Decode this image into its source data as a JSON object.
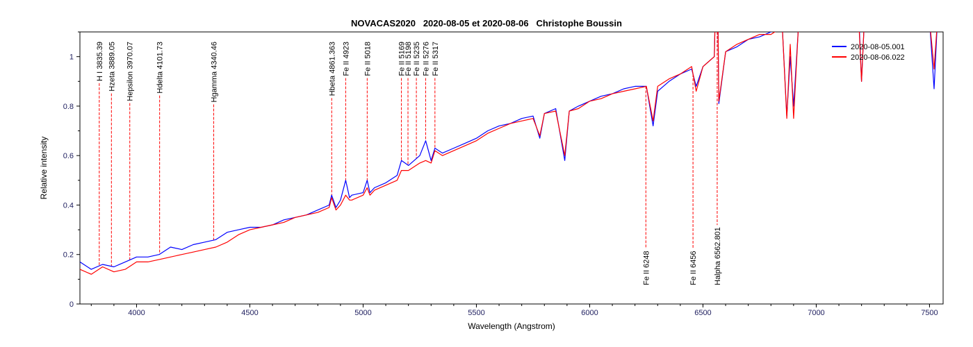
{
  "chart_data": {
    "type": "line",
    "title": "NOVACAS2020   2020-08-05 et 2020-08-06   Christophe Boussin",
    "xlabel": "Wavelength (Angstrom)",
    "ylabel": "Relative intensity",
    "xlim": [
      3750,
      7560
    ],
    "ylim": [
      0,
      1.1
    ],
    "xticks": [
      4000,
      4500,
      5000,
      5500,
      6000,
      6500,
      7000,
      7500
    ],
    "yticks": [
      0,
      0.2,
      0.4,
      0.6,
      0.8,
      1
    ],
    "ytick_labels": [
      "0",
      "0.2",
      "0.4",
      "0.6",
      "0.8",
      "1"
    ],
    "legend_position": "top-right",
    "series": [
      {
        "name": "2020-08-05.001",
        "color": "#0000ff",
        "points": [
          [
            3750,
            0.17
          ],
          [
            3800,
            0.14
          ],
          [
            3850,
            0.16
          ],
          [
            3900,
            0.15
          ],
          [
            3950,
            0.17
          ],
          [
            4000,
            0.19
          ],
          [
            4050,
            0.19
          ],
          [
            4100,
            0.2
          ],
          [
            4150,
            0.23
          ],
          [
            4200,
            0.22
          ],
          [
            4250,
            0.24
          ],
          [
            4300,
            0.25
          ],
          [
            4350,
            0.26
          ],
          [
            4400,
            0.29
          ],
          [
            4450,
            0.3
          ],
          [
            4500,
            0.31
          ],
          [
            4550,
            0.31
          ],
          [
            4600,
            0.32
          ],
          [
            4650,
            0.34
          ],
          [
            4700,
            0.35
          ],
          [
            4750,
            0.36
          ],
          [
            4800,
            0.38
          ],
          [
            4850,
            0.4
          ],
          [
            4861,
            0.44
          ],
          [
            4880,
            0.39
          ],
          [
            4900,
            0.42
          ],
          [
            4923,
            0.5
          ],
          [
            4940,
            0.43
          ],
          [
            4950,
            0.44
          ],
          [
            5000,
            0.45
          ],
          [
            5018,
            0.5
          ],
          [
            5030,
            0.45
          ],
          [
            5050,
            0.47
          ],
          [
            5100,
            0.49
          ],
          [
            5150,
            0.52
          ],
          [
            5169,
            0.58
          ],
          [
            5200,
            0.56
          ],
          [
            5250,
            0.6
          ],
          [
            5276,
            0.66
          ],
          [
            5300,
            0.58
          ],
          [
            5317,
            0.63
          ],
          [
            5350,
            0.61
          ],
          [
            5400,
            0.63
          ],
          [
            5450,
            0.65
          ],
          [
            5500,
            0.67
          ],
          [
            5550,
            0.7
          ],
          [
            5600,
            0.72
          ],
          [
            5650,
            0.73
          ],
          [
            5700,
            0.75
          ],
          [
            5750,
            0.76
          ],
          [
            5780,
            0.67
          ],
          [
            5800,
            0.77
          ],
          [
            5850,
            0.79
          ],
          [
            5890,
            0.58
          ],
          [
            5910,
            0.78
          ],
          [
            5950,
            0.8
          ],
          [
            6000,
            0.82
          ],
          [
            6050,
            0.84
          ],
          [
            6100,
            0.85
          ],
          [
            6150,
            0.87
          ],
          [
            6200,
            0.88
          ],
          [
            6250,
            0.88
          ],
          [
            6280,
            0.72
          ],
          [
            6300,
            0.86
          ],
          [
            6350,
            0.9
          ],
          [
            6400,
            0.93
          ],
          [
            6450,
            0.95
          ],
          [
            6470,
            0.88
          ],
          [
            6500,
            0.96
          ],
          [
            6550,
            1.0
          ],
          [
            6562,
            1.5
          ],
          [
            6570,
            0.81
          ],
          [
            6600,
            1.02
          ],
          [
            6650,
            1.04
          ],
          [
            6700,
            1.07
          ],
          [
            6750,
            1.08
          ],
          [
            6800,
            1.1
          ],
          [
            6850,
            1.12
          ],
          [
            6870,
            0.76
          ],
          [
            6885,
            1.0
          ],
          [
            6900,
            0.8
          ],
          [
            6920,
            1.1
          ],
          [
            6950,
            1.12
          ],
          [
            7000,
            1.15
          ],
          [
            7190,
            1.12
          ],
          [
            7200,
            0.9
          ],
          [
            7210,
            1.1
          ],
          [
            7250,
            1.15
          ],
          [
            7500,
            1.15
          ],
          [
            7520,
            0.87
          ],
          [
            7535,
            1.15
          ],
          [
            7560,
            1.15
          ]
        ]
      },
      {
        "name": "2020-08-06.022",
        "color": "#ff0000",
        "points": [
          [
            3750,
            0.14
          ],
          [
            3800,
            0.12
          ],
          [
            3850,
            0.15
          ],
          [
            3900,
            0.13
          ],
          [
            3950,
            0.14
          ],
          [
            4000,
            0.17
          ],
          [
            4050,
            0.17
          ],
          [
            4100,
            0.18
          ],
          [
            4150,
            0.19
          ],
          [
            4200,
            0.2
          ],
          [
            4250,
            0.21
          ],
          [
            4300,
            0.22
          ],
          [
            4350,
            0.23
          ],
          [
            4400,
            0.25
          ],
          [
            4450,
            0.28
          ],
          [
            4500,
            0.3
          ],
          [
            4550,
            0.31
          ],
          [
            4600,
            0.32
          ],
          [
            4650,
            0.33
          ],
          [
            4700,
            0.35
          ],
          [
            4750,
            0.36
          ],
          [
            4800,
            0.37
          ],
          [
            4850,
            0.39
          ],
          [
            4861,
            0.43
          ],
          [
            4880,
            0.38
          ],
          [
            4900,
            0.4
          ],
          [
            4923,
            0.44
          ],
          [
            4940,
            0.42
          ],
          [
            4950,
            0.42
          ],
          [
            5000,
            0.44
          ],
          [
            5018,
            0.47
          ],
          [
            5030,
            0.44
          ],
          [
            5050,
            0.46
          ],
          [
            5100,
            0.48
          ],
          [
            5150,
            0.5
          ],
          [
            5169,
            0.54
          ],
          [
            5200,
            0.54
          ],
          [
            5250,
            0.57
          ],
          [
            5276,
            0.58
          ],
          [
            5300,
            0.57
          ],
          [
            5317,
            0.62
          ],
          [
            5350,
            0.6
          ],
          [
            5400,
            0.62
          ],
          [
            5450,
            0.64
          ],
          [
            5500,
            0.66
          ],
          [
            5550,
            0.69
          ],
          [
            5600,
            0.71
          ],
          [
            5650,
            0.73
          ],
          [
            5700,
            0.74
          ],
          [
            5750,
            0.75
          ],
          [
            5780,
            0.68
          ],
          [
            5800,
            0.77
          ],
          [
            5850,
            0.78
          ],
          [
            5890,
            0.6
          ],
          [
            5910,
            0.78
          ],
          [
            5950,
            0.79
          ],
          [
            6000,
            0.82
          ],
          [
            6050,
            0.83
          ],
          [
            6100,
            0.85
          ],
          [
            6150,
            0.86
          ],
          [
            6200,
            0.87
          ],
          [
            6250,
            0.88
          ],
          [
            6280,
            0.74
          ],
          [
            6300,
            0.88
          ],
          [
            6350,
            0.91
          ],
          [
            6400,
            0.93
          ],
          [
            6450,
            0.96
          ],
          [
            6470,
            0.86
          ],
          [
            6500,
            0.96
          ],
          [
            6550,
            1.0
          ],
          [
            6562,
            1.5
          ],
          [
            6570,
            0.82
          ],
          [
            6600,
            1.02
          ],
          [
            6650,
            1.05
          ],
          [
            6700,
            1.07
          ],
          [
            6750,
            1.09
          ],
          [
            6800,
            1.09
          ],
          [
            6850,
            1.12
          ],
          [
            6870,
            0.75
          ],
          [
            6885,
            1.05
          ],
          [
            6900,
            0.75
          ],
          [
            6920,
            1.1
          ],
          [
            6950,
            1.13
          ],
          [
            7000,
            1.15
          ],
          [
            7190,
            1.1
          ],
          [
            7200,
            0.9
          ],
          [
            7210,
            1.1
          ],
          [
            7250,
            1.15
          ],
          [
            7500,
            1.15
          ],
          [
            7520,
            0.95
          ],
          [
            7535,
            1.15
          ],
          [
            7560,
            1.15
          ]
        ]
      }
    ],
    "line_markers": [
      {
        "wavelength": 3835.39,
        "label": "H I 3835.39",
        "position": "top"
      },
      {
        "wavelength": 3889.05,
        "label": "Hzeta 3889.05",
        "position": "top"
      },
      {
        "wavelength": 3970.07,
        "label": "Hepsilon 3970.07",
        "position": "top"
      },
      {
        "wavelength": 4101.73,
        "label": "Hdelta 4101.73",
        "position": "top"
      },
      {
        "wavelength": 4340.46,
        "label": "Hgamma 4340.46",
        "position": "top"
      },
      {
        "wavelength": 4861.363,
        "label": "Hbeta 4861.363",
        "position": "top"
      },
      {
        "wavelength": 4923,
        "label": "Fe II 4923",
        "position": "top"
      },
      {
        "wavelength": 5018,
        "label": "Fe II 5018",
        "position": "top"
      },
      {
        "wavelength": 5169,
        "label": "Fe II 5169",
        "position": "top"
      },
      {
        "wavelength": 5198,
        "label": "Fe II 5198",
        "position": "top"
      },
      {
        "wavelength": 5235,
        "label": "Fe II 5235",
        "position": "top"
      },
      {
        "wavelength": 5276,
        "label": "Fe II 5276",
        "position": "top"
      },
      {
        "wavelength": 5317,
        "label": "Fe II 5317",
        "position": "top"
      },
      {
        "wavelength": 6248,
        "label": "Fe II 6248",
        "position": "bottom"
      },
      {
        "wavelength": 6456,
        "label": "Fe II 6456",
        "position": "bottom"
      },
      {
        "wavelength": 6562.801,
        "label": "Halpha 6562.801",
        "position": "bottom"
      }
    ]
  }
}
